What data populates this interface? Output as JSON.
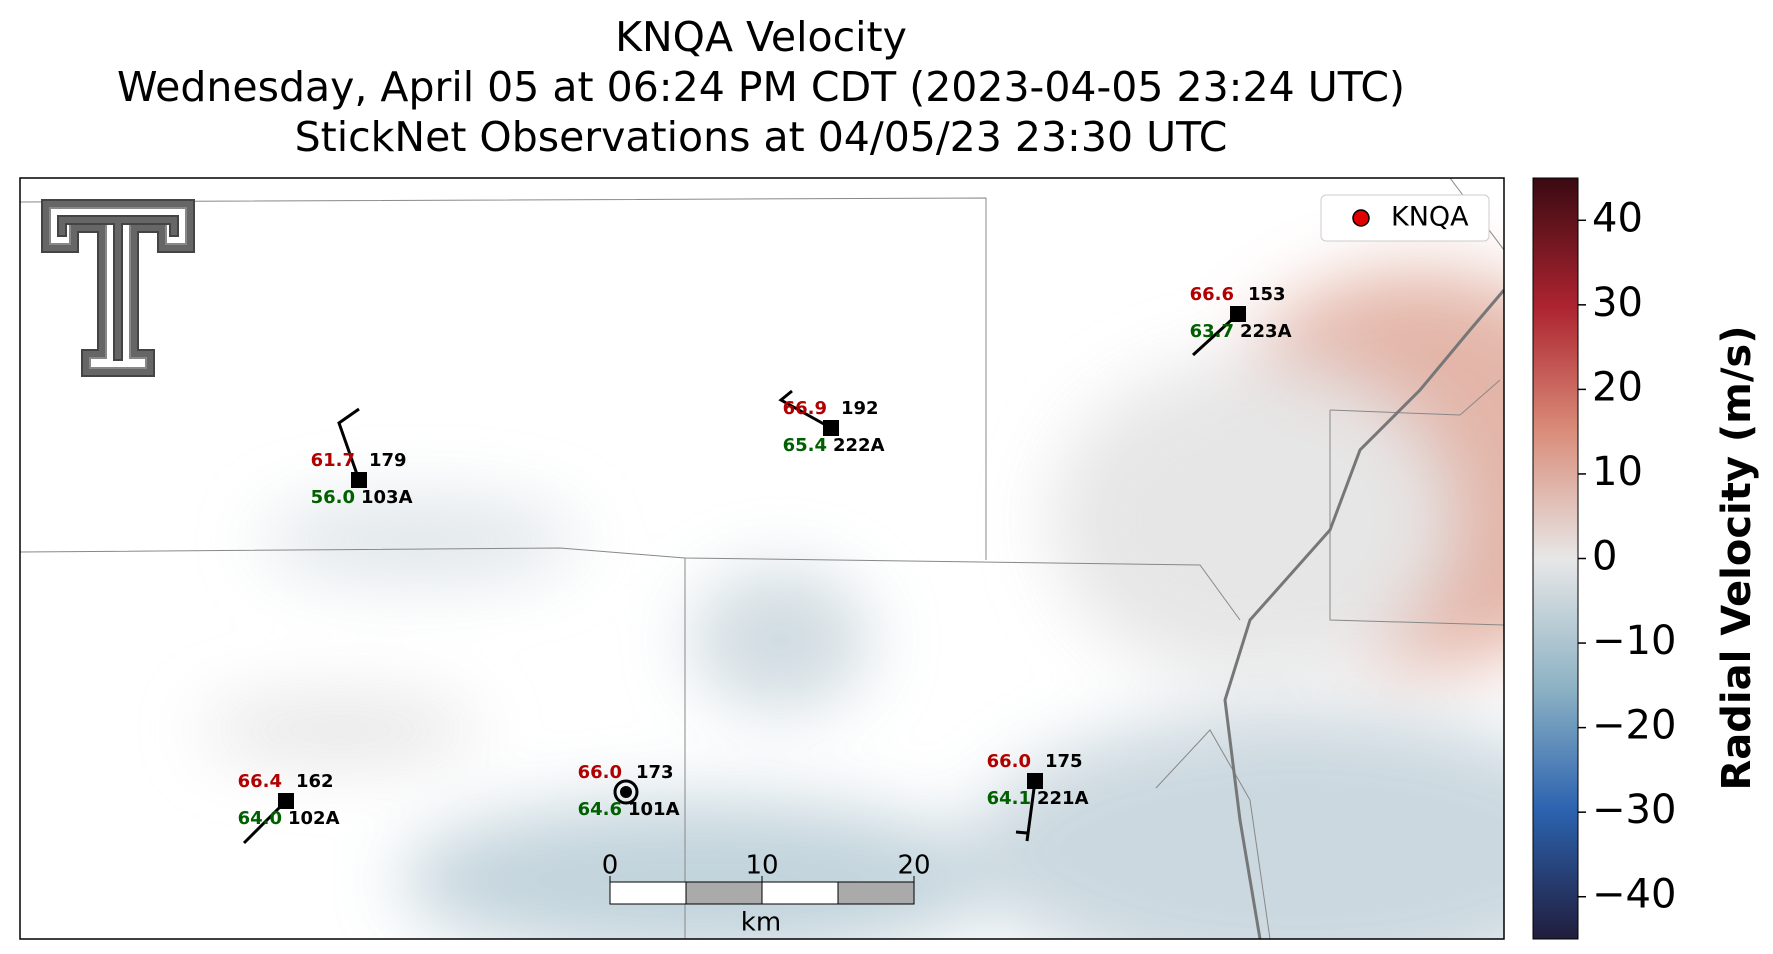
{
  "title_lines": [
    "KNQA Velocity",
    "Wednesday, April 05 at 06:24 PM CDT (2023-04-05 23:24 UTC)",
    "StickNet Observations at 04/05/23 23:30 UTC"
  ],
  "legend": {
    "label": "KNQA",
    "color": "#e00000"
  },
  "colorbar": {
    "label": "Radial Velocity (m/s)",
    "lim": [
      -45,
      45
    ],
    "ticks": [
      40,
      30,
      20,
      10,
      0,
      {
        "value": -10,
        "label": "−10"
      },
      {
        "value": -20,
        "label": "−20"
      },
      {
        "value": -30,
        "label": "−30"
      },
      {
        "value": -40,
        "label": "−40"
      }
    ]
  },
  "scale_bar": {
    "ticks": [
      0,
      10,
      20
    ],
    "unit": "km"
  },
  "stations": [
    {
      "id": "103A",
      "temperature": "61.7",
      "dewpoint": "56.0",
      "pressure": "179"
    },
    {
      "id": "222A",
      "temperature": "66.9",
      "dewpoint": "65.4",
      "pressure": "192"
    },
    {
      "id": "223A",
      "temperature": "66.6",
      "dewpoint": "63.7",
      "pressure": "153"
    },
    {
      "id": "102A",
      "temperature": "66.4",
      "dewpoint": "64.0",
      "pressure": "162"
    },
    {
      "id": "101A",
      "temperature": "66.0",
      "dewpoint": "64.6",
      "pressure": "173"
    },
    {
      "id": "221A",
      "temperature": "66.0",
      "dewpoint": "64.1",
      "pressure": "175"
    }
  ]
}
